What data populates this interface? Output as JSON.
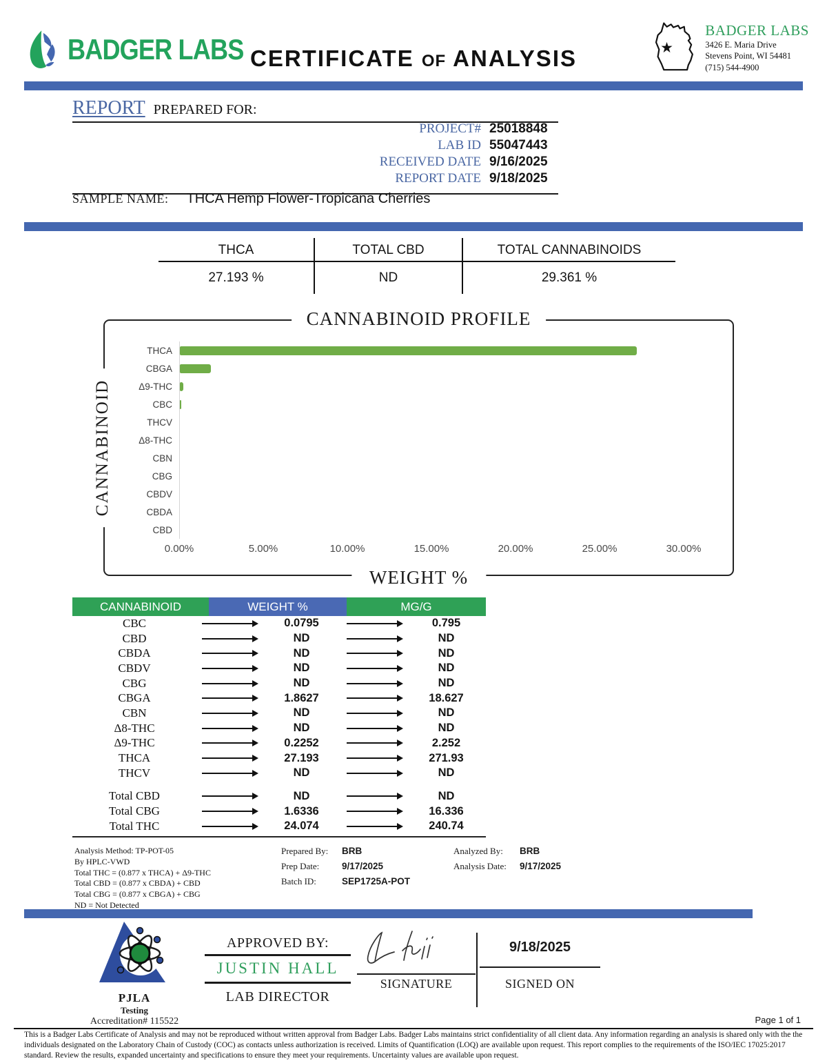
{
  "header": {
    "logo_text": "BADGER LABS",
    "title_part1": "CERTIFICATE",
    "title_of": "OF",
    "title_part2": "ANALYSIS",
    "lab": {
      "name": "BADGER LABS",
      "address_line1": "3426 E. Maria Drive",
      "address_line2": "Stevens Point, WI 54481",
      "phone": "(715) 544-4900"
    }
  },
  "report": {
    "heading_report": "REPORT",
    "heading_prepared": "PREPARED FOR:",
    "fields": [
      {
        "label": "PROJECT#",
        "value": "25018848"
      },
      {
        "label": "LAB ID",
        "value": "55047443"
      },
      {
        "label": "RECEIVED DATE",
        "value": "9/16/2025"
      },
      {
        "label": "REPORT DATE",
        "value": "9/18/2025"
      }
    ],
    "sample_label": "SAMPLE NAME:",
    "sample_value": "THCA Hemp Flower-Tropicana Cherries"
  },
  "summary": {
    "columns": [
      {
        "label": "THCA",
        "value": "27.193 %"
      },
      {
        "label": "TOTAL CBD",
        "value": "ND"
      },
      {
        "label": "TOTAL CANNABINOIDS",
        "value": "29.361 %"
      }
    ]
  },
  "chart_data": {
    "type": "bar",
    "orientation": "horizontal",
    "title": "CANNABINOID PROFILE",
    "xlabel": "WEIGHT %",
    "ylabel": "CANNABINOID",
    "categories": [
      "THCA",
      "CBGA",
      "Δ9-THC",
      "CBC",
      "THCV",
      "Δ8-THC",
      "CBN",
      "CBG",
      "CBDV",
      "CBDA",
      "CBD"
    ],
    "values": [
      27.193,
      1.8627,
      0.2252,
      0.0795,
      0,
      0,
      0,
      0,
      0,
      0,
      0
    ],
    "xlim": [
      0,
      30
    ],
    "x_ticks": [
      "0.00%",
      "5.00%",
      "10.00%",
      "15.00%",
      "20.00%",
      "25.00%",
      "30.00%"
    ],
    "bar_color": "#70ad47",
    "grid": false,
    "legend": "none"
  },
  "table": {
    "headers": [
      {
        "label": "CANNABINOID",
        "color": "#2fa156"
      },
      {
        "label": "WEIGHT %",
        "color": "#4a69b4"
      },
      {
        "label": "MG/G",
        "color": "#2fa156"
      }
    ],
    "rows": [
      {
        "name": "CBC",
        "weight": "0.0795",
        "mgg": "0.795"
      },
      {
        "name": "CBD",
        "weight": "ND",
        "mgg": "ND"
      },
      {
        "name": "CBDA",
        "weight": "ND",
        "mgg": "ND"
      },
      {
        "name": "CBDV",
        "weight": "ND",
        "mgg": "ND"
      },
      {
        "name": "CBG",
        "weight": "ND",
        "mgg": "ND"
      },
      {
        "name": "CBGA",
        "weight": "1.8627",
        "mgg": "18.627"
      },
      {
        "name": "CBN",
        "weight": "ND",
        "mgg": "ND"
      },
      {
        "name": "Δ8-THC",
        "weight": "ND",
        "mgg": "ND"
      },
      {
        "name": "Δ9-THC",
        "weight": "0.2252",
        "mgg": "2.252"
      },
      {
        "name": "THCA",
        "weight": "27.193",
        "mgg": "271.93"
      },
      {
        "name": "THCV",
        "weight": "ND",
        "mgg": "ND"
      }
    ],
    "total_rows": [
      {
        "name": "Total CBD",
        "weight": "ND",
        "mgg": "ND"
      },
      {
        "name": "Total CBG",
        "weight": "1.6336",
        "mgg": "16.336"
      },
      {
        "name": "Total THC",
        "weight": "24.074",
        "mgg": "240.74"
      }
    ]
  },
  "footnotes": {
    "method_lines": [
      "Analysis Method: TP-POT-05",
      "By HPLC-VWD",
      "Total THC = (0.877 x  THCA) + Δ9-THC",
      "Total CBD = (0.877 x  CBDA) + CBD",
      "Total CBG = (0.877 x  CBGA) + CBG",
      "ND = Not Detected"
    ],
    "prep": [
      {
        "label": "Prepared By:",
        "value": "BRB"
      },
      {
        "label": "Prep Date:",
        "value": "9/17/2025"
      },
      {
        "label": "Batch ID:",
        "value": "SEP1725A-POT"
      }
    ],
    "analysis": [
      {
        "label": "Analyzed By:",
        "value": "BRB"
      },
      {
        "label": "Analysis Date:",
        "value": "9/17/2025"
      }
    ]
  },
  "approval": {
    "approved_by_label": "APPROVED BY:",
    "approver_name": "JUSTIN HALL",
    "approver_title": "LAB DIRECTOR",
    "signature_label": "SIGNATURE",
    "signed_on_date": "9/18/2025",
    "signed_on_label": "SIGNED ON"
  },
  "accreditation": {
    "org": "PJLA",
    "sub": "Testing",
    "number": "Accreditation# 115522"
  },
  "footer": {
    "page": "Page 1 of 1",
    "disclaimer": "This is a Badger Labs Certificate of Analysis and may not be reproduced without written approval from Badger Labs. Badger Labs maintains strict confidentiality of all client data. Any information regarding an analysis is shared only with the the individuals designated on the Laboratory Chain of Custody (COC) as contacts unless authorization is received. Limits of Quantification (LOQ) are available upon request. This report complies to the requirements of the ISO/IEC 17025:2017 standard. Review the results, expanded uncertainty and specifications to ensure they meet your requirements. Uncertainty values are available upon request."
  },
  "colors": {
    "brand_green": "#23a35c",
    "serif_green": "#2f9e5c",
    "divider_blue": "#4467b0",
    "label_blue": "#4a67a3",
    "table_green": "#2fa156",
    "table_blue": "#4a69b4",
    "bar_green": "#70ad47",
    "pjla_blue": "#2e4d9e"
  }
}
